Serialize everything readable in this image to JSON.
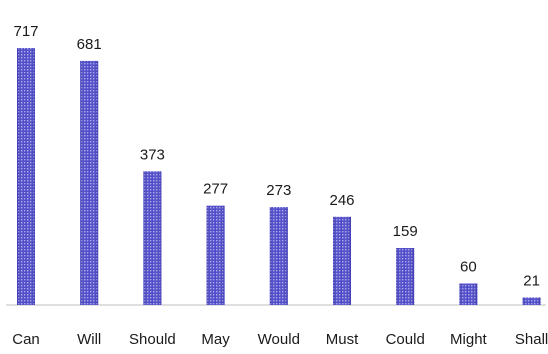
{
  "chart_data": {
    "type": "bar",
    "title": "",
    "xlabel": "",
    "ylabel": "",
    "categories": [
      "Can",
      "Will",
      "Should",
      "May",
      "Would",
      "Must",
      "Could",
      "Might",
      "Shall"
    ],
    "values": [
      717,
      681,
      373,
      277,
      273,
      246,
      159,
      60,
      21
    ],
    "ylim": [
      0,
      717
    ],
    "grid": false,
    "legend": "none",
    "bar_color": "#4b46c8",
    "bar_highlight": "#c9c8f5",
    "axis_color": "#bfbfbf"
  }
}
